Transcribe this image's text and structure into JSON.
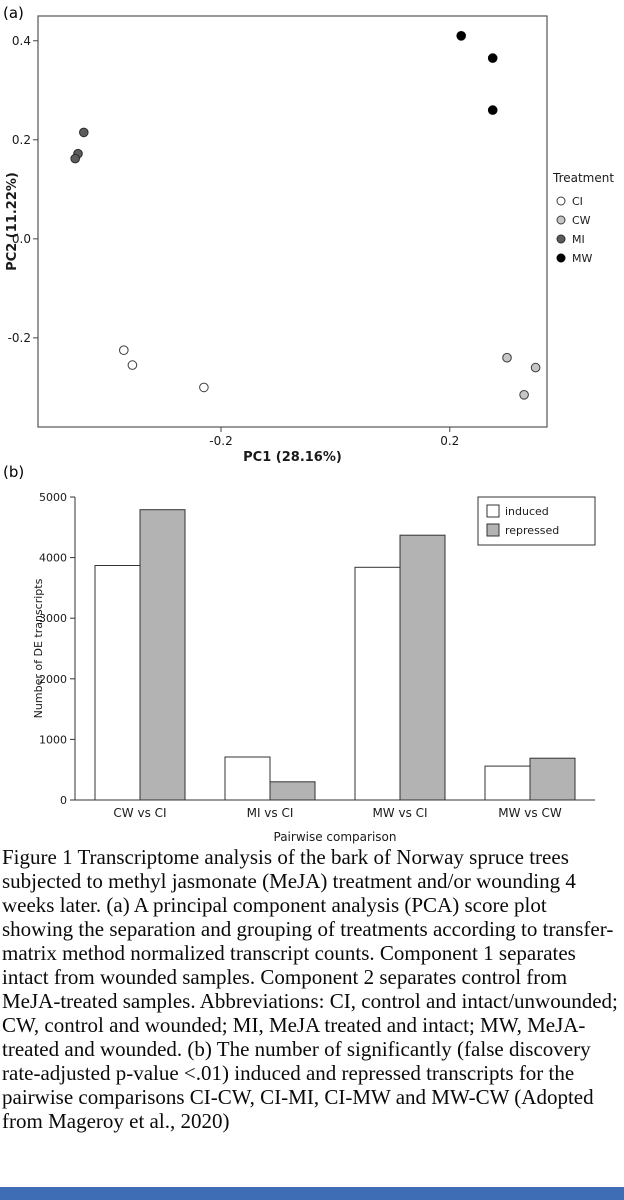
{
  "panels": {
    "a_label": "(a)",
    "b_label": "(b)"
  },
  "chart_data": [
    {
      "id": "pca-score-plot",
      "type": "scatter",
      "xlabel": "PC1 (28.16%)",
      "ylabel": "PC2 (11.22%)",
      "xlim": [
        -0.52,
        0.37
      ],
      "ylim": [
        -0.38,
        0.45
      ],
      "xticks": [
        -0.2,
        0.2
      ],
      "yticks": [
        -0.2,
        0.0,
        0.2,
        0.4
      ],
      "legend_title": "Treatment",
      "legend_position": "right",
      "grid": false,
      "series": [
        {
          "name": "CI",
          "fill": "#ffffff",
          "stroke": "#3d3d3d",
          "points": [
            [
              -0.37,
              -0.225
            ],
            [
              -0.355,
              -0.255
            ],
            [
              -0.23,
              -0.3
            ]
          ]
        },
        {
          "name": "CW",
          "fill": "#c6c6c6",
          "stroke": "#3d3d3d",
          "points": [
            [
              0.3,
              -0.24
            ],
            [
              0.35,
              -0.26
            ],
            [
              0.33,
              -0.315
            ]
          ]
        },
        {
          "name": "MI",
          "fill": "#5c5c5c",
          "stroke": "#2b2b2b",
          "points": [
            [
              -0.44,
              0.215
            ],
            [
              -0.45,
              0.172
            ],
            [
              -0.455,
              0.162
            ]
          ]
        },
        {
          "name": "MW",
          "fill": "#000000",
          "stroke": "#000000",
          "points": [
            [
              0.22,
              0.41
            ],
            [
              0.275,
              0.365
            ],
            [
              0.275,
              0.26
            ]
          ]
        }
      ]
    },
    {
      "id": "de-transcripts",
      "type": "bar",
      "categories": [
        "CW vs CI",
        "MI vs CI",
        "MW vs CI",
        "MW vs CW"
      ],
      "series": [
        {
          "name": "induced",
          "fill": "#ffffff",
          "values": [
            3870,
            710,
            3840,
            560
          ]
        },
        {
          "name": "repressed",
          "fill": "#b3b3b3",
          "values": [
            4790,
            300,
            4370,
            690
          ]
        }
      ],
      "xlabel": "Pairwise comparison",
      "ylabel": "Number of DE transcripts",
      "ylim": [
        0,
        5000
      ],
      "yticks": [
        0,
        1000,
        2000,
        3000,
        4000,
        5000
      ],
      "legend_position": "top-right",
      "grid": false
    }
  ],
  "caption": {
    "text": "Figure 1 Transcriptome analysis of the bark of Norway spruce trees subjected to methyl jasmonate (MeJA) treatment and/or wounding 4 weeks later. (a) A principal component analysis (PCA) score plot showing the separation and grouping of treatments according to transfer-matrix method normalized transcript counts. Component 1 separates intact from wounded samples. Component 2 separates control from MeJA-treated samples. Abbreviations: CI, control and intact/unwounded; CW, control and wounded; MI, MeJA treated and intact; MW, MeJA-treated and wounded. (b) The number of significantly (false discovery rate-adjusted p-value <.01) induced and repressed transcripts for the pairwise comparisons CI-CW, CI-MI, CI-MW and MW-CW (Adopted from Mageroy et al., 2020)"
  },
  "colors": {
    "axis": "#444444",
    "plot_border": "#555555",
    "bar_stroke": "#333333",
    "bottom_bar": "#3f6db5"
  }
}
